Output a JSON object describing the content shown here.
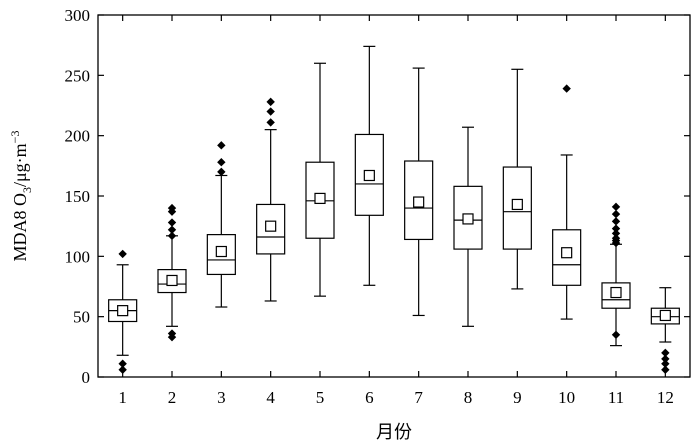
{
  "chart_data": {
    "type": "box",
    "xlabel": "月份",
    "ylabel": {
      "prefix": "MDA8 O",
      "sub": "3",
      "mid": "/μg·m",
      "sup": "−3"
    },
    "ylim": [
      0,
      300
    ],
    "yticks": [
      0,
      50,
      100,
      150,
      200,
      250,
      300
    ],
    "categories": [
      "1",
      "2",
      "3",
      "4",
      "5",
      "6",
      "7",
      "8",
      "9",
      "10",
      "11",
      "12"
    ],
    "boxes": [
      {
        "month": "1",
        "whisker_low": 18,
        "q1": 46,
        "median": 55,
        "q3": 64,
        "whisker_high": 93,
        "mean": 55,
        "outliers": [
          102,
          11,
          6
        ]
      },
      {
        "month": "2",
        "whisker_low": 42,
        "q1": 70,
        "median": 77,
        "q3": 89,
        "whisker_high": 117,
        "mean": 80,
        "outliers": [
          140,
          137,
          128,
          122,
          117,
          36,
          33
        ]
      },
      {
        "month": "3",
        "whisker_low": 58,
        "q1": 85,
        "median": 97,
        "q3": 118,
        "whisker_high": 167,
        "mean": 104,
        "outliers": [
          192,
          178,
          170
        ]
      },
      {
        "month": "4",
        "whisker_low": 63,
        "q1": 102,
        "median": 116,
        "q3": 143,
        "whisker_high": 205,
        "mean": 125,
        "outliers": [
          228,
          220,
          211
        ]
      },
      {
        "month": "5",
        "whisker_low": 67,
        "q1": 115,
        "median": 146,
        "q3": 178,
        "whisker_high": 260,
        "mean": 148,
        "outliers": []
      },
      {
        "month": "6",
        "whisker_low": 76,
        "q1": 134,
        "median": 160,
        "q3": 201,
        "whisker_high": 274,
        "mean": 167,
        "outliers": []
      },
      {
        "month": "7",
        "whisker_low": 51,
        "q1": 114,
        "median": 140,
        "q3": 179,
        "whisker_high": 256,
        "mean": 145,
        "outliers": []
      },
      {
        "month": "8",
        "whisker_low": 42,
        "q1": 106,
        "median": 130,
        "q3": 158,
        "whisker_high": 207,
        "mean": 131,
        "outliers": []
      },
      {
        "month": "9",
        "whisker_low": 73,
        "q1": 106,
        "median": 137,
        "q3": 174,
        "whisker_high": 255,
        "mean": 143,
        "outliers": []
      },
      {
        "month": "10",
        "whisker_low": 48,
        "q1": 76,
        "median": 93,
        "q3": 122,
        "whisker_high": 184,
        "mean": 103,
        "outliers": [
          239
        ]
      },
      {
        "month": "11",
        "whisker_low": 26,
        "q1": 57,
        "median": 64,
        "q3": 78,
        "whisker_high": 110,
        "mean": 70,
        "outliers": [
          141,
          135,
          129,
          123,
          119,
          115,
          113,
          111,
          35
        ]
      },
      {
        "month": "12",
        "whisker_low": 29,
        "q1": 44,
        "median": 50,
        "q3": 57,
        "whisker_high": 74,
        "mean": 51,
        "outliers": [
          20,
          15,
          11,
          6
        ]
      }
    ]
  }
}
